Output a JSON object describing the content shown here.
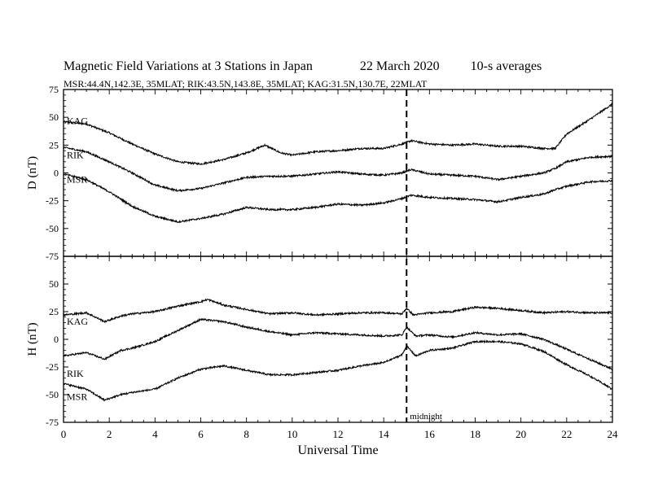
{
  "header": {
    "title": "Magnetic Field Variations at 3 Stations in Japan",
    "date": "22 March   2020",
    "averaging": "10-s averages",
    "stations": "MSR:44.4N,142.3E, 35MLAT;  RIK:43.5N,143.8E, 35MLAT;  KAG:31.5N,130.7E, 22MLAT"
  },
  "chart_data": {
    "type": "line",
    "xlabel": "Universal Time",
    "xlim": [
      0,
      24
    ],
    "x_ticks": [
      "0",
      "2",
      "4",
      "6",
      "8",
      "10",
      "12",
      "14",
      "16",
      "18",
      "20",
      "22",
      "24"
    ],
    "marker": {
      "x": 15,
      "label": "midnight",
      "style": "dashed"
    },
    "panels": [
      {
        "ylabel": "D (nT)",
        "ylim": [
          -75,
          75
        ],
        "y_ticks": [
          "75",
          "50",
          "25",
          "0",
          "-25",
          "-50",
          "-75"
        ],
        "series": [
          {
            "name": "KAG",
            "x": [
              0,
              1,
              2,
              3,
              4,
              5,
              6,
              7,
              8,
              8.8,
              9.5,
              10,
              11,
              12,
              13,
              14,
              14.8,
              15.2,
              16,
              17,
              18,
              19,
              20,
              21,
              21.5,
              22,
              23,
              24
            ],
            "values": [
              46,
              44,
              36,
              26,
              17,
              10,
              8,
              12,
              18,
              25,
              18,
              16,
              19,
              20,
              22,
              22,
              26,
              29,
              26,
              25,
              26,
              24,
              24,
              22,
              22,
              35,
              48,
              62
            ]
          },
          {
            "name": "RIK",
            "x": [
              0,
              1,
              2,
              3,
              4,
              5,
              6,
              7,
              8,
              9,
              10,
              11,
              12,
              13,
              14,
              14.8,
              15.2,
              16,
              17,
              18,
              19,
              20,
              21,
              21.5,
              22,
              23,
              24
            ],
            "values": [
              23,
              19,
              10,
              0,
              -11,
              -16,
              -14,
              -9,
              -4,
              -3,
              -3,
              -1,
              1,
              -1,
              -2,
              0,
              3,
              -1,
              -2,
              -3,
              -6,
              -3,
              0,
              4,
              10,
              14,
              15
            ]
          },
          {
            "name": "MSR",
            "x": [
              0,
              1,
              2,
              3,
              4,
              5,
              6,
              7,
              8,
              9,
              10,
              11,
              12,
              13,
              14,
              14.8,
              15.2,
              16,
              17,
              18,
              19,
              20,
              21,
              21.5,
              22,
              23,
              24
            ],
            "values": [
              -1,
              -6,
              -17,
              -30,
              -39,
              -44,
              -41,
              -37,
              -31,
              -33,
              -33,
              -31,
              -28,
              -29,
              -27,
              -23,
              -20,
              -22,
              -23,
              -24,
              -26,
              -22,
              -19,
              -15,
              -12,
              -8,
              -7
            ]
          }
        ]
      },
      {
        "ylabel": "H (nT)",
        "ylim": [
          -75,
          75
        ],
        "y_ticks": [
          "50",
          "25",
          "0",
          "-25",
          "-50",
          "-75"
        ],
        "series": [
          {
            "name": "KAG",
            "x": [
              0,
              1,
              1.8,
              2.5,
              3,
              4,
              5,
              6,
              6.3,
              7,
              8,
              9,
              10,
              11,
              12,
              13,
              14,
              14.8,
              15,
              15.3,
              16,
              17,
              18,
              19,
              20,
              21,
              22,
              23,
              24
            ],
            "values": [
              22,
              24,
              16,
              21,
              23,
              25,
              30,
              34,
              36,
              31,
              27,
              23,
              24,
              22,
              23,
              24,
              24,
              23,
              28,
              22,
              24,
              25,
              29,
              28,
              26,
              24,
              25,
              24,
              24
            ]
          },
          {
            "name": "RIK",
            "x": [
              0,
              1,
              1.8,
              2.5,
              3,
              4,
              5,
              6,
              7,
              8,
              9,
              10,
              11,
              12,
              13,
              14,
              14.8,
              15,
              15.4,
              16,
              17,
              18,
              19,
              20,
              21,
              22,
              23,
              24
            ],
            "values": [
              -15,
              -12,
              -18,
              -10,
              -8,
              -2,
              8,
              18,
              16,
              11,
              7,
              4,
              6,
              5,
              4,
              3,
              4,
              11,
              3,
              4,
              2,
              6,
              4,
              5,
              0,
              -9,
              -18,
              -27
            ]
          },
          {
            "name": "MSR",
            "x": [
              0,
              1,
              1.8,
              2.5,
              3,
              4,
              5,
              6,
              7,
              8,
              9,
              10,
              11,
              12,
              13,
              14,
              14.8,
              15,
              15.4,
              16,
              17,
              18,
              19,
              20,
              21,
              22,
              23,
              24
            ],
            "values": [
              -40,
              -45,
              -55,
              -50,
              -48,
              -45,
              -35,
              -27,
              -24,
              -28,
              -32,
              -32,
              -30,
              -28,
              -24,
              -21,
              -14,
              -6,
              -15,
              -10,
              -8,
              -2,
              -2,
              -4,
              -11,
              -23,
              -33,
              -45
            ]
          }
        ]
      }
    ]
  }
}
